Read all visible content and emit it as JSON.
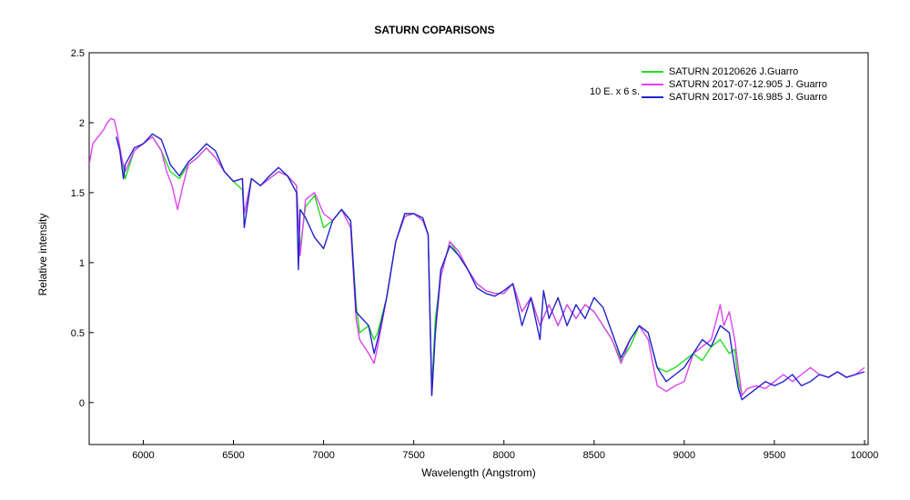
{
  "chart_data": {
    "type": "line",
    "title": "SATURN  COPARISONS",
    "xlabel": "Wavelength (Angstrom)",
    "ylabel": "Relative intensity",
    "xlim": [
      5700,
      10020
    ],
    "ylim": [
      -0.3,
      2.5
    ],
    "xticks": [
      6000,
      6500,
      7000,
      7500,
      8000,
      8500,
      9000,
      9500,
      10000
    ],
    "yticks": [
      0,
      0.5,
      1,
      1.5,
      2,
      2.5
    ],
    "ytick_labels": [
      "0",
      "0.5",
      "1",
      "1.5",
      "2",
      "2.5"
    ],
    "grid": false,
    "legend_position": "top-right",
    "annotation": "10 E. x 6 s.",
    "series": [
      {
        "name": "SATURN  20120626     J.Guarro",
        "color": "#22dd22",
        "x": [
          5880,
          5900,
          5950,
          6000,
          6050,
          6100,
          6150,
          6200,
          6250,
          6300,
          6350,
          6400,
          6450,
          6500,
          6550,
          6560,
          6600,
          6650,
          6700,
          6750,
          6800,
          6850,
          6870,
          6900,
          6950,
          7000,
          7050,
          7100,
          7150,
          7180,
          7200,
          7250,
          7280,
          7300,
          7350,
          7400,
          7450,
          7500,
          7550,
          7580,
          7600,
          7620,
          7650,
          7700,
          7750,
          7800,
          7850,
          7900,
          7950,
          8000,
          8050,
          8100,
          8150,
          8200,
          8250,
          8300,
          8350,
          8400,
          8450,
          8500,
          8550,
          8600,
          8650,
          8700,
          8750,
          8800,
          8850,
          8900,
          8950,
          9000,
          9050,
          9100,
          9150,
          9200,
          9250,
          9280,
          9300,
          9320
        ],
        "y": [
          1.75,
          1.6,
          1.8,
          1.85,
          1.9,
          1.8,
          1.65,
          1.6,
          1.7,
          1.75,
          1.82,
          1.75,
          1.65,
          1.58,
          1.52,
          1.35,
          1.6,
          1.55,
          1.6,
          1.65,
          1.62,
          1.55,
          1.1,
          1.4,
          1.48,
          1.25,
          1.3,
          1.38,
          1.3,
          0.7,
          0.5,
          0.55,
          0.45,
          0.5,
          0.75,
          1.15,
          1.33,
          1.35,
          1.3,
          1.2,
          0.1,
          0.6,
          0.9,
          1.15,
          1.05,
          0.95,
          0.85,
          0.8,
          0.78,
          0.78,
          0.85,
          0.65,
          0.75,
          0.55,
          0.7,
          0.55,
          0.7,
          0.6,
          0.7,
          0.65,
          0.55,
          0.45,
          0.3,
          0.4,
          0.55,
          0.5,
          0.25,
          0.22,
          0.25,
          0.3,
          0.35,
          0.3,
          0.4,
          0.45,
          0.35,
          0.38,
          0.15,
          0.05
        ]
      },
      {
        "name": "SATURN  2017-07-12.905  J. Guarro",
        "color": "#dd44ee",
        "x": [
          5700,
          5720,
          5750,
          5780,
          5800,
          5820,
          5840,
          5860,
          5880,
          5900,
          5950,
          6000,
          6050,
          6100,
          6130,
          6160,
          6190,
          6220,
          6250,
          6300,
          6350,
          6400,
          6450,
          6500,
          6550,
          6560,
          6600,
          6650,
          6700,
          6750,
          6800,
          6850,
          6870,
          6900,
          6950,
          7000,
          7050,
          7100,
          7150,
          7180,
          7200,
          7250,
          7280,
          7300,
          7350,
          7400,
          7450,
          7500,
          7550,
          7580,
          7600,
          7620,
          7650,
          7700,
          7750,
          7800,
          7850,
          7900,
          7950,
          8000,
          8050,
          8100,
          8150,
          8200,
          8250,
          8300,
          8350,
          8400,
          8450,
          8500,
          8550,
          8600,
          8650,
          8700,
          8750,
          8800,
          8850,
          8900,
          8950,
          9000,
          9050,
          9100,
          9150,
          9200,
          9220,
          9250,
          9280,
          9300,
          9320,
          9350,
          9400,
          9450,
          9500,
          9550,
          9600,
          9650,
          9700,
          9750,
          9800,
          9850,
          9900,
          9950,
          10000
        ],
        "y": [
          1.7,
          1.85,
          1.9,
          1.95,
          2.0,
          2.03,
          2.02,
          1.9,
          1.75,
          1.65,
          1.8,
          1.85,
          1.9,
          1.8,
          1.65,
          1.55,
          1.38,
          1.55,
          1.7,
          1.75,
          1.82,
          1.75,
          1.65,
          1.58,
          1.6,
          1.35,
          1.6,
          1.55,
          1.6,
          1.65,
          1.62,
          1.55,
          1.05,
          1.45,
          1.5,
          1.35,
          1.3,
          1.38,
          1.25,
          0.6,
          0.45,
          0.35,
          0.28,
          0.4,
          0.75,
          1.15,
          1.33,
          1.35,
          1.3,
          1.2,
          0.05,
          0.5,
          0.9,
          1.15,
          1.08,
          0.95,
          0.85,
          0.8,
          0.78,
          0.78,
          0.85,
          0.65,
          0.75,
          0.55,
          0.7,
          0.55,
          0.7,
          0.6,
          0.7,
          0.65,
          0.55,
          0.45,
          0.28,
          0.45,
          0.55,
          0.45,
          0.12,
          0.08,
          0.12,
          0.15,
          0.35,
          0.4,
          0.45,
          0.7,
          0.55,
          0.65,
          0.45,
          0.25,
          0.05,
          0.1,
          0.12,
          0.1,
          0.15,
          0.2,
          0.15,
          0.2,
          0.25,
          0.2,
          0.18,
          0.22,
          0.18,
          0.2,
          0.25
        ]
      },
      {
        "name": "SATURN  2017-07-16.985  J. Guarro",
        "color": "#2222cc",
        "x": [
          5850,
          5870,
          5890,
          5900,
          5950,
          6000,
          6050,
          6100,
          6150,
          6200,
          6250,
          6300,
          6350,
          6400,
          6450,
          6500,
          6550,
          6560,
          6600,
          6650,
          6700,
          6750,
          6800,
          6850,
          6860,
          6870,
          6900,
          6950,
          7000,
          7050,
          7100,
          7150,
          7180,
          7200,
          7250,
          7280,
          7300,
          7350,
          7400,
          7450,
          7500,
          7550,
          7580,
          7600,
          7620,
          7650,
          7700,
          7750,
          7800,
          7850,
          7900,
          7950,
          8000,
          8050,
          8100,
          8150,
          8200,
          8220,
          8250,
          8300,
          8350,
          8400,
          8450,
          8500,
          8550,
          8600,
          8650,
          8700,
          8750,
          8800,
          8850,
          8900,
          8950,
          9000,
          9050,
          9100,
          9150,
          9200,
          9250,
          9280,
          9300,
          9320,
          9350,
          9400,
          9450,
          9500,
          9550,
          9600,
          9650,
          9700,
          9750,
          9800,
          9850,
          9900,
          9950,
          10000
        ],
        "y": [
          1.9,
          1.8,
          1.6,
          1.7,
          1.82,
          1.85,
          1.92,
          1.88,
          1.7,
          1.62,
          1.72,
          1.78,
          1.85,
          1.8,
          1.65,
          1.58,
          1.6,
          1.25,
          1.6,
          1.55,
          1.62,
          1.68,
          1.62,
          1.5,
          0.95,
          1.38,
          1.32,
          1.18,
          1.1,
          1.3,
          1.38,
          1.3,
          0.65,
          0.62,
          0.55,
          0.35,
          0.45,
          0.75,
          1.15,
          1.35,
          1.35,
          1.32,
          1.2,
          0.05,
          0.5,
          0.95,
          1.12,
          1.05,
          0.95,
          0.82,
          0.78,
          0.76,
          0.8,
          0.85,
          0.55,
          0.75,
          0.45,
          0.8,
          0.6,
          0.75,
          0.55,
          0.7,
          0.6,
          0.75,
          0.68,
          0.5,
          0.32,
          0.45,
          0.55,
          0.5,
          0.25,
          0.15,
          0.2,
          0.25,
          0.35,
          0.45,
          0.4,
          0.55,
          0.5,
          0.25,
          0.1,
          0.02,
          0.05,
          0.1,
          0.15,
          0.12,
          0.15,
          0.2,
          0.12,
          0.15,
          0.2,
          0.18,
          0.22,
          0.18,
          0.2,
          0.22
        ]
      }
    ]
  }
}
